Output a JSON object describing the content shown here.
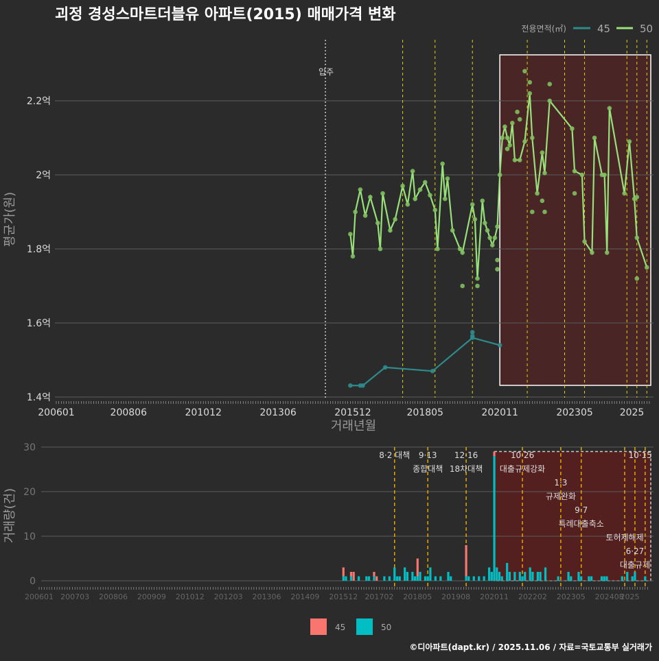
{
  "chart_data": [
    {
      "type": "line",
      "title": "괴정 경성스마트더블유 아파트(2015) 매매가격 변화",
      "xlabel": "거래년월",
      "ylabel": "평균가(원)",
      "ylim": [
        1.4,
        2.35
      ],
      "y_ticks": [
        {
          "v": 1.4,
          "label": "1.4억"
        },
        {
          "v": 1.6,
          "label": "1.6억"
        },
        {
          "v": 1.8,
          "label": "1.8억"
        },
        {
          "v": 2.0,
          "label": "2억"
        },
        {
          "v": 2.2,
          "label": "2.2억"
        }
      ],
      "x_ticks": [
        "200601",
        "200806",
        "201012",
        "201306",
        "201512",
        "201805",
        "202011",
        "202305",
        "2025"
      ],
      "legend_title": "전용면적(㎡)",
      "legend_position": "top-right",
      "move_in": {
        "month": "201501",
        "label": "입주"
      },
      "highlight_range": [
        "202011",
        "202511"
      ],
      "series": [
        {
          "name": "45",
          "color": "#2e8b8b",
          "points": [
            [
              "201511",
              1.431
            ],
            [
              "201603",
              1.431
            ],
            [
              "201604",
              1.431
            ],
            [
              "201701",
              1.48
            ],
            [
              "201808",
              1.47
            ],
            [
              "201912",
              1.56
            ],
            [
              "202011",
              1.54
            ]
          ],
          "extra_points": [
            [
              "201912",
              1.575
            ],
            [
              "201912",
              1.565
            ]
          ]
        },
        {
          "name": "50",
          "color": "#98e07a",
          "points": [
            [
              "201511",
              1.84
            ],
            [
              "201512",
              1.78
            ],
            [
              "201601",
              1.9
            ],
            [
              "201603",
              1.96
            ],
            [
              "201605",
              1.89
            ],
            [
              "201607",
              1.94
            ],
            [
              "201610",
              1.87
            ],
            [
              "201611",
              1.8
            ],
            [
              "201612",
              1.95
            ],
            [
              "201703",
              1.85
            ],
            [
              "201705",
              1.88
            ],
            [
              "201708",
              1.97
            ],
            [
              "201710",
              1.92
            ],
            [
              "201712",
              2.01
            ],
            [
              "201801",
              1.935
            ],
            [
              "201803",
              1.96
            ],
            [
              "201805",
              1.98
            ],
            [
              "201807",
              1.945
            ],
            [
              "201809",
              1.905
            ],
            [
              "201810",
              1.8
            ],
            [
              "201812",
              2.03
            ],
            [
              "201901",
              1.935
            ],
            [
              "201902",
              1.99
            ],
            [
              "201904",
              1.85
            ],
            [
              "201907",
              1.8
            ],
            [
              "201908",
              1.79
            ],
            [
              "201912",
              1.92
            ],
            [
              "202001",
              1.88
            ],
            [
              "202002",
              1.72
            ],
            [
              "202004",
              1.93
            ],
            [
              "202005",
              1.87
            ],
            [
              "202006",
              1.85
            ],
            [
              "202007",
              1.83
            ],
            [
              "202008",
              1.81
            ],
            [
              "202009",
              1.83
            ],
            [
              "202010",
              1.86
            ],
            [
              "202011",
              2.0
            ],
            [
              "202012",
              2.1
            ],
            [
              "202101",
              2.13
            ],
            [
              "202102",
              2.1
            ],
            [
              "202103",
              2.08
            ],
            [
              "202104",
              2.14
            ],
            [
              "202105",
              2.04
            ],
            [
              "202107",
              2.04
            ],
            [
              "202109",
              2.09
            ],
            [
              "202111",
              2.22
            ],
            [
              "202112",
              2.1
            ],
            [
              "202202",
              1.95
            ],
            [
              "202204",
              2.06
            ],
            [
              "202205",
              2.005
            ],
            [
              "202207",
              2.2
            ],
            [
              "202304",
              2.125
            ],
            [
              "202305",
              2.01
            ],
            [
              "202308",
              2.0
            ],
            [
              "202309",
              1.82
            ],
            [
              "202312",
              1.79
            ],
            [
              "202401",
              2.1
            ],
            [
              "202404",
              2.0
            ],
            [
              "202405",
              2.0
            ],
            [
              "202406",
              1.79
            ],
            [
              "202407",
              2.18
            ],
            [
              "202501",
              1.95
            ],
            [
              "202503",
              2.09
            ],
            [
              "202505",
              1.935
            ],
            [
              "202506",
              1.83
            ],
            [
              "202510",
              1.75
            ]
          ],
          "extra_points": [
            [
              "201908",
              1.7
            ],
            [
              "202002",
              1.7
            ],
            [
              "202109",
              2.28
            ],
            [
              "202111",
              2.25
            ],
            [
              "202207",
              2.245
            ],
            [
              "202106",
              2.17
            ],
            [
              "202112",
              1.9
            ],
            [
              "202205",
              1.9
            ],
            [
              "202204",
              1.93
            ],
            [
              "202010",
              1.745
            ],
            [
              "202010",
              1.77
            ],
            [
              "202506",
              1.72
            ],
            [
              "202506",
              1.94
            ],
            [
              "202305",
              1.95
            ],
            [
              "202102",
              2.07
            ],
            [
              "202107",
              2.15
            ]
          ]
        }
      ],
      "policy_lines": [
        "201708",
        "201809",
        "201912",
        "202110",
        "202301",
        "202309",
        "202502",
        "202506",
        "202510"
      ]
    },
    {
      "type": "bar",
      "ylabel": "거래량(건)",
      "ylim": [
        0,
        30
      ],
      "y_ticks": [
        0,
        10,
        20,
        30
      ],
      "x_ticks": [
        "200601",
        "200703",
        "200806",
        "200909",
        "201012",
        "201203",
        "201306",
        "201409",
        "201512",
        "201702",
        "201805",
        "201908",
        "202011",
        "202202",
        "202305",
        "202408",
        "2025"
      ],
      "legend": [
        {
          "name": "45",
          "color": "#f8766d"
        },
        {
          "name": "50",
          "color": "#00bfc4"
        }
      ],
      "legend_position": "bottom",
      "highlight_range": [
        "202011",
        "202511"
      ],
      "highlight_max": 29,
      "bars": [
        [
          "201512",
          2,
          1
        ],
        [
          "201601",
          0,
          1
        ],
        [
          "201603",
          1,
          1
        ],
        [
          "201604",
          2,
          0
        ],
        [
          "201606",
          0,
          1
        ],
        [
          "201609",
          0,
          1
        ],
        [
          "201610",
          0,
          1
        ],
        [
          "201612",
          1,
          1
        ],
        [
          "201701",
          1,
          0
        ],
        [
          "201704",
          0,
          1
        ],
        [
          "201706",
          0,
          1
        ],
        [
          "201708",
          0,
          3
        ],
        [
          "201709",
          0,
          1
        ],
        [
          "201710",
          0,
          1
        ],
        [
          "201712",
          0,
          3
        ],
        [
          "201801",
          0,
          2
        ],
        [
          "201803",
          0,
          2
        ],
        [
          "201804",
          0,
          1
        ],
        [
          "201805",
          4,
          1
        ],
        [
          "201806",
          0,
          2
        ],
        [
          "201808",
          0,
          1
        ],
        [
          "201809",
          0,
          1
        ],
        [
          "201810",
          0,
          3
        ],
        [
          "201812",
          0,
          1
        ],
        [
          "201902",
          0,
          1
        ],
        [
          "201905",
          0,
          2
        ],
        [
          "201906",
          0,
          1
        ],
        [
          "201912",
          7,
          1
        ],
        [
          "202001",
          0,
          1
        ],
        [
          "202003",
          0,
          1
        ],
        [
          "202005",
          0,
          1
        ],
        [
          "202007",
          0,
          1
        ],
        [
          "202009",
          0,
          3
        ],
        [
          "202010",
          0,
          2
        ],
        [
          "202011",
          1,
          28
        ],
        [
          "202012",
          0,
          3
        ],
        [
          "202101",
          0,
          2
        ],
        [
          "202102",
          0,
          1
        ],
        [
          "202104",
          0,
          4
        ],
        [
          "202105",
          0,
          2
        ],
        [
          "202107",
          0,
          2
        ],
        [
          "202109",
          0,
          2
        ],
        [
          "202110",
          0,
          1
        ],
        [
          "202111",
          0,
          2
        ],
        [
          "202201",
          0,
          3
        ],
        [
          "202202",
          0,
          2
        ],
        [
          "202204",
          0,
          2
        ],
        [
          "202205",
          0,
          2
        ],
        [
          "202207",
          0,
          3
        ],
        [
          "202212",
          0,
          1
        ],
        [
          "202304",
          0,
          2
        ],
        [
          "202305",
          0,
          1
        ],
        [
          "202308",
          0,
          2
        ],
        [
          "202309",
          0,
          1
        ],
        [
          "202312",
          0,
          1
        ],
        [
          "202401",
          0,
          1
        ],
        [
          "202405",
          0,
          1
        ],
        [
          "202406",
          0,
          1
        ],
        [
          "202407",
          0,
          1
        ],
        [
          "202501",
          0,
          1
        ],
        [
          "202503",
          0,
          2
        ],
        [
          "202505",
          0,
          1
        ],
        [
          "202506",
          0,
          2
        ],
        [
          "202510",
          0,
          1
        ]
      ],
      "annotations": [
        {
          "month": "201708",
          "date": "8·2",
          "label": "대책"
        },
        {
          "month": "201809",
          "date": "9·13",
          "label": "종합대책"
        },
        {
          "month": "201912",
          "date": "12·16",
          "label": "18차대책"
        },
        {
          "month": "202110",
          "date": "10·26",
          "label": "대출규제강화"
        },
        {
          "month": "202301",
          "date": "1·3",
          "label": "규제완화"
        },
        {
          "month": "202309",
          "date": "9·7",
          "label": "특례대출축소"
        },
        {
          "month": "202502",
          "date": "",
          "label": "토허제해제"
        },
        {
          "month": "202506",
          "date": "6·27",
          "label": "대출규제"
        },
        {
          "month": "202510",
          "date": "10·15",
          "label": ""
        }
      ]
    }
  ],
  "footer": "©디아파트(dapt.kr) / 2025.11.06 / 자료=국토교통부 실거래가"
}
